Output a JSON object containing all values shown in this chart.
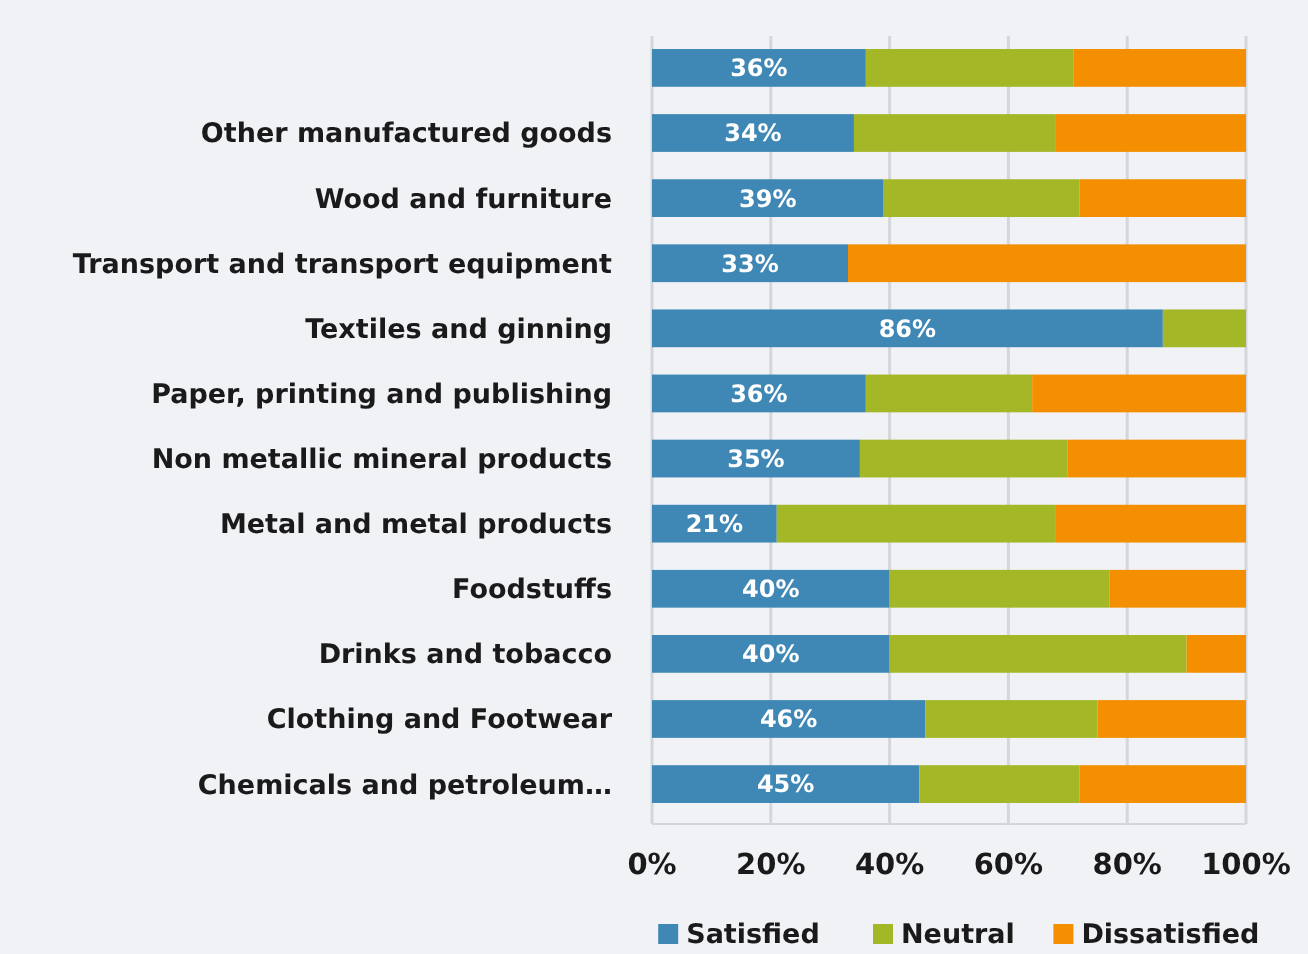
{
  "chart_data": {
    "type": "bar",
    "orientation": "horizontal",
    "stacked": true,
    "categories": [
      null,
      "Other manufactured goods",
      "Wood and furniture",
      "Transport and transport equipment",
      "Textiles and ginning",
      "Paper, printing and publishing",
      "Non metallic mineral products",
      "Metal and metal products",
      "Foodstuffs",
      "Drinks and tobacco",
      "Clothing and Footwear",
      "Chemicals and petroleum…"
    ],
    "series": [
      {
        "name": "Satisfied",
        "color": "#3f88b5",
        "values": [
          36,
          34,
          39,
          33,
          86,
          36,
          35,
          21,
          40,
          40,
          46,
          45
        ],
        "value_labels": [
          "36%",
          "34%",
          "39%",
          "33%",
          "86%",
          "36%",
          "35%",
          "21%",
          "40%",
          "40%",
          "46%",
          "45%"
        ]
      },
      {
        "name": "Neutral",
        "color": "#a3b727",
        "values": [
          35,
          34,
          33,
          0,
          14,
          28,
          35,
          47,
          37,
          50,
          29,
          27
        ]
      },
      {
        "name": "Dissatisfied",
        "color": "#f38f00",
        "values": [
          29,
          32,
          28,
          67,
          0,
          36,
          30,
          32,
          23,
          10,
          25,
          28
        ]
      }
    ],
    "xlim": [
      0,
      100
    ],
    "xticks": [
      {
        "value": 0,
        "label": "0%"
      },
      {
        "value": 20,
        "label": "20%"
      },
      {
        "value": 40,
        "label": "40%"
      },
      {
        "value": 60,
        "label": "60%"
      },
      {
        "value": 80,
        "label": "80%"
      },
      {
        "value": 100,
        "label": "100%"
      }
    ],
    "grid": "x",
    "legend": "bottom"
  }
}
